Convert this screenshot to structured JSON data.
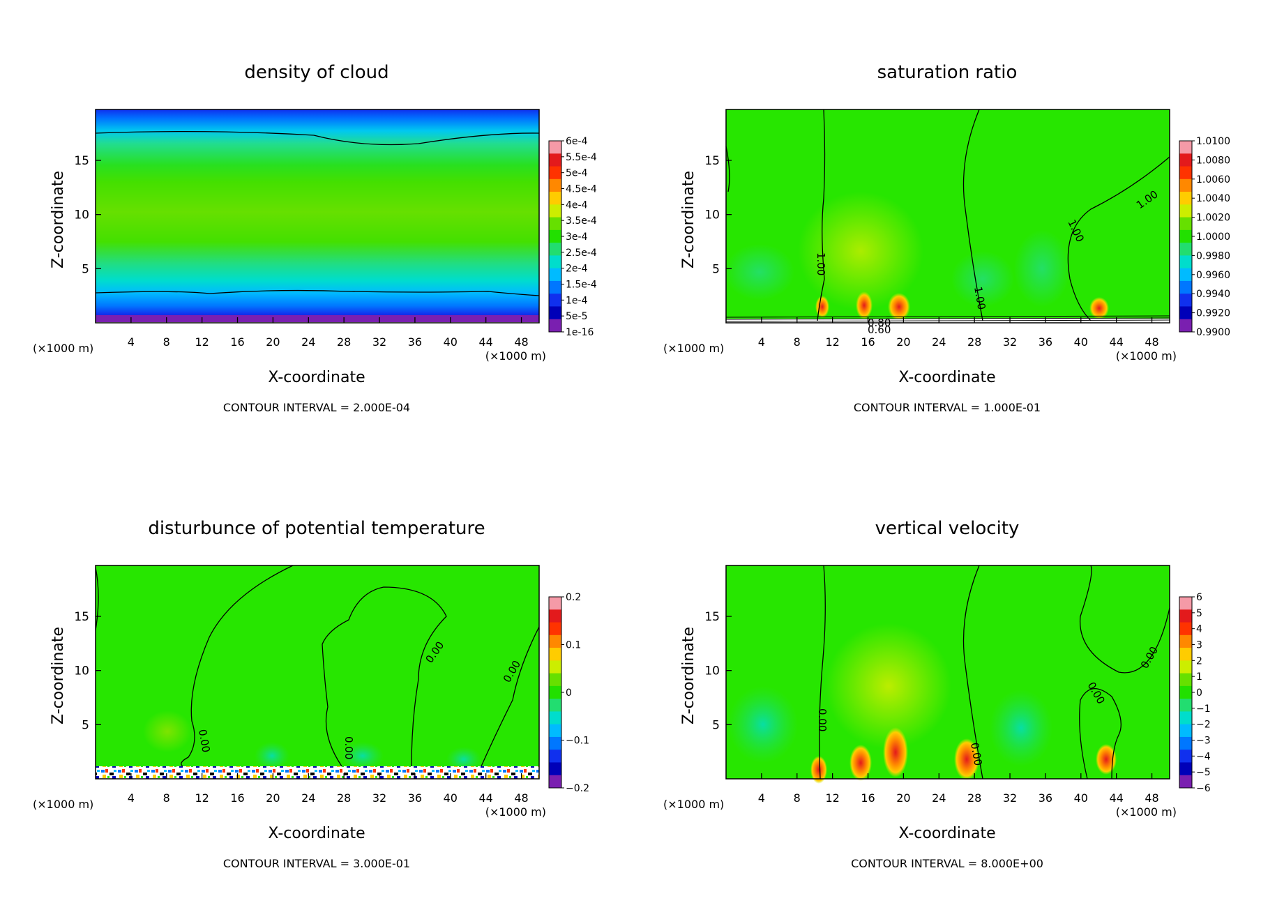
{
  "xaxis": {
    "label": "X-coordinate",
    "unit": "(×1000 m)",
    "ticks": [
      4,
      8,
      12,
      16,
      20,
      24,
      28,
      32,
      36,
      40,
      44,
      48
    ],
    "range": [
      0,
      50
    ]
  },
  "zaxis": {
    "label": "Z-coordinate",
    "unit": "(×1000 m)",
    "ticks": [
      5,
      10,
      15
    ],
    "range": [
      0,
      19.7
    ]
  },
  "chart_data": [
    {
      "type": "heatmap",
      "title": "density of cloud",
      "footer": "CONTOUR INTERVAL = 2.000E-04",
      "colorbar": [
        "6e-4",
        "5.5e-4",
        "5e-4",
        "4.5e-4",
        "4e-4",
        "3.5e-4",
        "3e-4",
        "2.5e-4",
        "2e-4",
        "1.5e-4",
        "1e-4",
        "5e-5",
        "1e-16"
      ],
      "contour_labels": []
    },
    {
      "type": "heatmap",
      "title": "saturation ratio",
      "footer": "CONTOUR INTERVAL = 1.000E-01",
      "colorbar": [
        "1.0100",
        "1.0080",
        "1.0060",
        "1.0040",
        "1.0020",
        "1.0000",
        "0.9980",
        "0.9960",
        "0.9940",
        "0.9920",
        "0.9900"
      ],
      "contour_labels": [
        "1.00",
        "1.00",
        "1.00",
        "1.00",
        "0.80",
        "0.60"
      ]
    },
    {
      "type": "heatmap",
      "title": "disturbunce of potential temperature",
      "footer": "CONTOUR INTERVAL = 3.000E-01",
      "colorbar": [
        "0.2",
        "",
        "",
        "",
        "",
        "0.1",
        "",
        "",
        "",
        "",
        "0",
        "",
        "",
        "",
        "",
        "−0.1",
        "",
        "",
        "",
        "",
        "−0.2"
      ],
      "contour_labels": [
        "0.00",
        "0.00",
        "0.00",
        "0.00"
      ]
    },
    {
      "type": "heatmap",
      "title": "vertical velocity",
      "footer": "CONTOUR INTERVAL = 8.000E+00",
      "colorbar": [
        "6",
        "5",
        "4",
        "3",
        "2",
        "1",
        "0",
        "−1",
        "−2",
        "−3",
        "−4",
        "−5",
        "−6"
      ],
      "contour_labels": [
        "0.00",
        "0.00",
        "0.00",
        "0.00"
      ]
    }
  ],
  "colors": {
    "green": "#27e600",
    "palette": [
      "#f59aa7",
      "#e31a1c",
      "#ff3300",
      "#ff8800",
      "#ffcc00",
      "#ccee00",
      "#66e000",
      "#22e000",
      "#22dd70",
      "#00ddcc",
      "#00bbff",
      "#0077ff",
      "#1030ee",
      "#0000b8",
      "#7a1fb0"
    ]
  }
}
